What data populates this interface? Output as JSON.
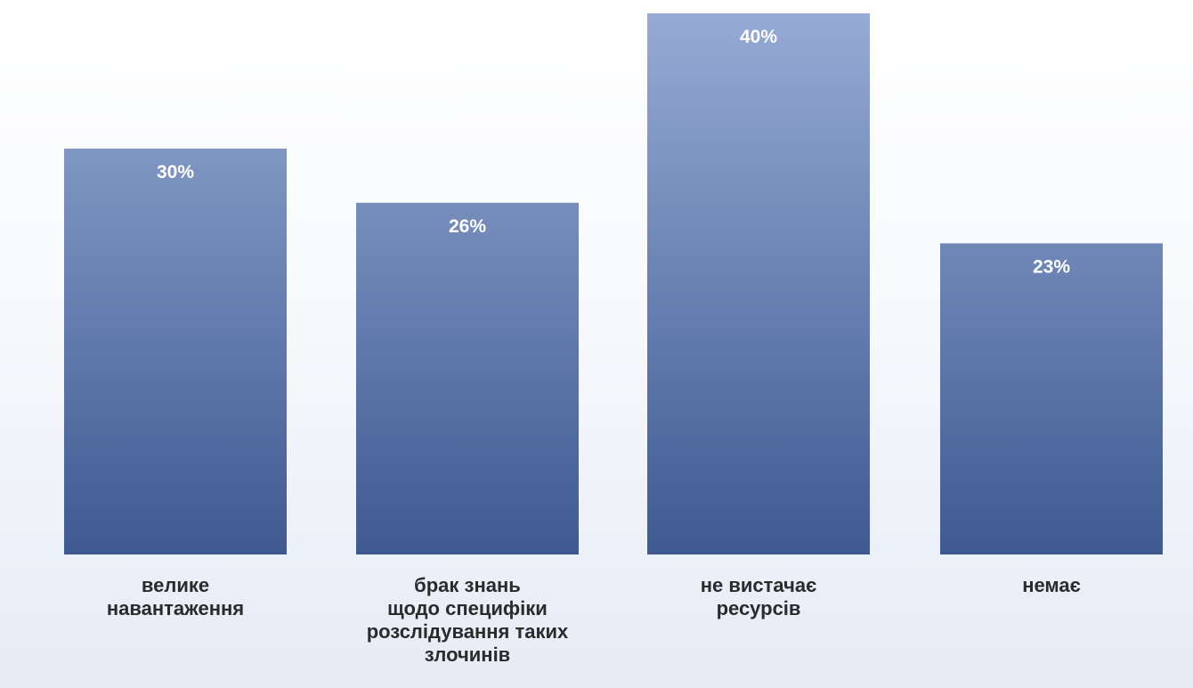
{
  "chart_data": {
    "type": "bar",
    "categories": [
      [
        "велике",
        "навантаження"
      ],
      [
        "брак знань",
        "щодо специфіки",
        "розслідування таких",
        "злочинів"
      ],
      [
        "не вистачає",
        "ресурсів"
      ],
      [
        "немає"
      ]
    ],
    "values": [
      30,
      26,
      40,
      23
    ],
    "data_labels": [
      "30%",
      "26%",
      "40%",
      "23%"
    ],
    "ylim": [
      0,
      40
    ],
    "grid": false,
    "legend": "none",
    "colors": {
      "bar_top": "#98acd6",
      "bar_bottom": "#3e5a91",
      "data_label": "#ffffff",
      "category_label": "#2b2b2b"
    }
  }
}
